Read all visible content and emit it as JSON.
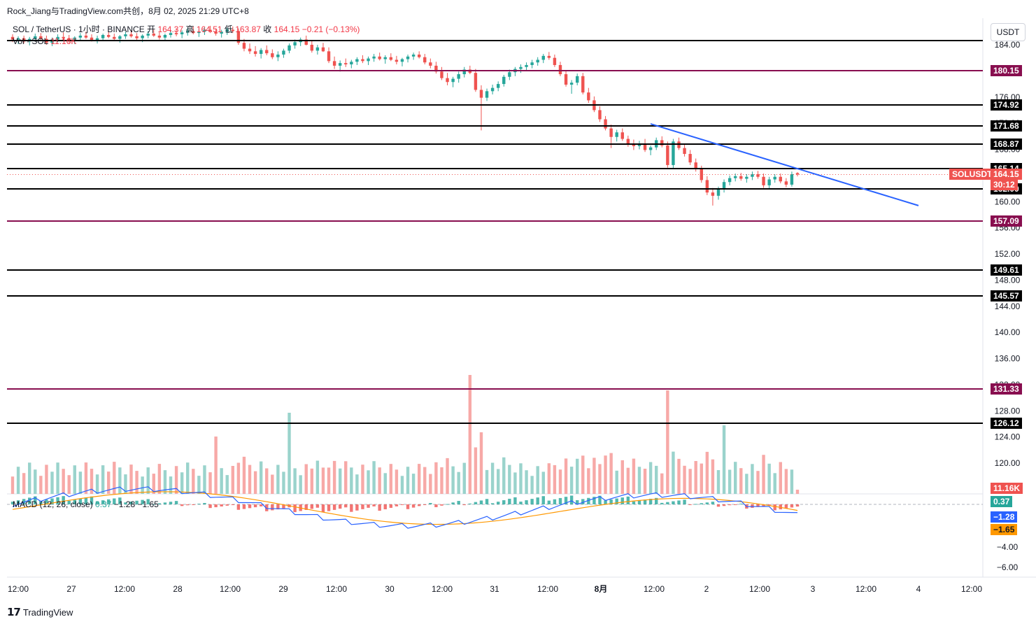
{
  "header": {
    "credit": "Rock_Jiang与TradingView.com共创，8月 02, 2025 21:29 UTC+8"
  },
  "legend": {
    "symbol": "SOL / TetherUS · 1小时 · BINANCE",
    "open_label": "开",
    "open_value": "164.37",
    "high_label": "高",
    "high_value": "164.51",
    "low_label": "低",
    "low_value": "163.87",
    "close_label": "收",
    "close_value": "164.15",
    "change": "−0.21 (−0.13%)",
    "volume_label": "Vol · SOL",
    "volume_value": "11.16K"
  },
  "macd_legend": {
    "label": "MACD (12, 26, close)",
    "hist": "0.37",
    "macd": "−1.28",
    "signal": "−1.65"
  },
  "price_scale": {
    "currency": "USDT",
    "ticks": [
      "184.00",
      "180.00",
      "176.00",
      "172.00",
      "168.00",
      "164.00",
      "160.00",
      "156.00",
      "152.00",
      "148.00",
      "144.00",
      "140.00",
      "136.00",
      "132.00",
      "128.00",
      "124.00",
      "120.00"
    ],
    "macd_ticks": [
      "−4.00",
      "−6.00"
    ]
  },
  "levels": [
    {
      "label": "184.15",
      "color": "#000000",
      "y": 58,
      "tag": false
    },
    {
      "label": "180.15",
      "color": "#880e4f",
      "y": 101,
      "tag": true
    },
    {
      "label": "174.92",
      "color": "#000000",
      "y": 150,
      "tag": true
    },
    {
      "label": "171.68",
      "color": "#000000",
      "y": 180,
      "tag": true
    },
    {
      "label": "168.87",
      "color": "#000000",
      "y": 206,
      "tag": true
    },
    {
      "label": "165.14",
      "color": "#000000",
      "y": 241,
      "tag": true
    },
    {
      "label": "162.00",
      "color": "#000000",
      "y": 270,
      "tag": true
    },
    {
      "label": "157.09",
      "color": "#880e4f",
      "y": 316,
      "tag": true
    },
    {
      "label": "149.61",
      "color": "#000000",
      "y": 386,
      "tag": true
    },
    {
      "label": "145.57",
      "color": "#000000",
      "y": 423,
      "tag": true
    },
    {
      "label": "131.33",
      "color": "#880e4f",
      "y": 556,
      "tag": true
    },
    {
      "label": "126.12",
      "color": "#000000",
      "y": 605,
      "tag": true
    }
  ],
  "current_price": {
    "symbol_tag": "SOLUSDT",
    "price": "164.15",
    "countdown": "30:12",
    "volume_tag": "11.16K",
    "hist_tag": "0.37",
    "macd_tag": "−1.28",
    "signal_tag": "−1.65"
  },
  "time_axis": [
    "12:00",
    "27",
    "12:00",
    "28",
    "12:00",
    "29",
    "12:00",
    "30",
    "12:00",
    "31",
    "12:00",
    "8月",
    "12:00",
    "2",
    "12:00",
    "3",
    "12:00",
    "4",
    "12:00"
  ],
  "colors": {
    "up": "#26a69a",
    "down": "#ef5350",
    "trendline": "#2962ff",
    "macd_line": "#2962ff",
    "signal_line": "#ff9800",
    "magenta_level": "#880e4f"
  },
  "chart_data": {
    "type": "candlestick",
    "symbol": "SOLUSDT",
    "timeframe": "1h",
    "ohlc_approx": [
      [
        185.2,
        185.6,
        184.4,
        184.8
      ],
      [
        184.8,
        185.3,
        184.1,
        185.0
      ],
      [
        185.0,
        185.4,
        184.2,
        184.5
      ],
      [
        184.5,
        185.2,
        183.9,
        184.9
      ],
      [
        184.9,
        185.7,
        184.5,
        185.3
      ],
      [
        185.3,
        185.8,
        184.6,
        184.9
      ],
      [
        184.9,
        185.4,
        184.0,
        184.3
      ],
      [
        184.3,
        185.1,
        183.8,
        184.8
      ],
      [
        184.8,
        185.6,
        184.4,
        185.2
      ],
      [
        185.2,
        185.9,
        184.7,
        185.0
      ],
      [
        185.0,
        185.5,
        184.3,
        184.6
      ],
      [
        184.6,
        185.3,
        184.1,
        185.1
      ],
      [
        185.1,
        185.8,
        184.6,
        185.4
      ],
      [
        185.4,
        186.0,
        184.9,
        185.1
      ],
      [
        185.1,
        185.6,
        184.5,
        184.7
      ],
      [
        184.7,
        185.4,
        184.2,
        185.0
      ],
      [
        185.0,
        185.7,
        184.6,
        185.5
      ],
      [
        185.5,
        186.1,
        185.0,
        185.2
      ],
      [
        185.2,
        185.7,
        184.6,
        184.9
      ],
      [
        184.9,
        185.5,
        184.3,
        185.3
      ],
      [
        185.3,
        186.0,
        184.9,
        185.6
      ],
      [
        185.6,
        186.2,
        185.1,
        185.3
      ],
      [
        185.3,
        185.8,
        184.7,
        185.0
      ],
      [
        185.0,
        185.6,
        184.4,
        185.4
      ],
      [
        185.4,
        186.1,
        185.0,
        185.7
      ],
      [
        185.7,
        186.3,
        185.2,
        185.4
      ],
      [
        185.4,
        185.9,
        184.8,
        185.1
      ],
      [
        185.1,
        185.7,
        184.6,
        185.5
      ],
      [
        185.5,
        186.2,
        185.1,
        185.8
      ],
      [
        185.8,
        186.5,
        185.3,
        185.6
      ],
      [
        185.6,
        186.2,
        185.0,
        185.9
      ],
      [
        185.9,
        186.6,
        185.4,
        186.1
      ],
      [
        186.1,
        186.8,
        185.6,
        185.8
      ],
      [
        185.8,
        186.3,
        185.2,
        186.0
      ],
      [
        186.0,
        186.7,
        185.5,
        186.3
      ],
      [
        186.3,
        186.9,
        185.8,
        186.0
      ],
      [
        186.0,
        186.5,
        185.4,
        185.7
      ],
      [
        185.7,
        186.3,
        185.1,
        186.0
      ],
      [
        186.0,
        186.6,
        185.5,
        186.3
      ],
      [
        186.3,
        186.8,
        185.8,
        186.1
      ],
      [
        186.1,
        186.5,
        184.0,
        184.3
      ],
      [
        184.3,
        184.9,
        183.0,
        183.4
      ],
      [
        183.4,
        184.2,
        182.6,
        183.0
      ],
      [
        183.0,
        183.8,
        182.2,
        182.6
      ],
      [
        182.6,
        183.5,
        181.9,
        183.2
      ],
      [
        183.2,
        183.9,
        182.4,
        182.7
      ],
      [
        182.7,
        183.3,
        181.8,
        182.1
      ],
      [
        182.1,
        183.0,
        181.5,
        182.5
      ],
      [
        182.5,
        183.4,
        182.0,
        183.1
      ],
      [
        183.1,
        184.2,
        182.7,
        183.9
      ],
      [
        183.9,
        184.8,
        183.4,
        184.4
      ],
      [
        184.4,
        185.1,
        183.8,
        184.8
      ],
      [
        184.8,
        185.4,
        183.9,
        184.0
      ],
      [
        184.0,
        184.6,
        182.8,
        183.1
      ],
      [
        183.1,
        184.0,
        182.5,
        183.6
      ],
      [
        183.6,
        184.3,
        182.9,
        183.0
      ],
      [
        183.0,
        183.6,
        181.2,
        181.5
      ],
      [
        181.5,
        182.2,
        180.3,
        180.8
      ],
      [
        180.8,
        181.6,
        179.9,
        181.2
      ],
      [
        181.2,
        181.9,
        180.6,
        181.0
      ],
      [
        181.0,
        181.7,
        180.4,
        181.4
      ],
      [
        181.4,
        182.1,
        180.9,
        181.8
      ],
      [
        181.8,
        182.4,
        181.2,
        181.5
      ],
      [
        181.5,
        182.2,
        180.9,
        181.9
      ],
      [
        181.9,
        182.6,
        181.4,
        182.2
      ],
      [
        182.2,
        182.8,
        181.6,
        181.8
      ],
      [
        181.8,
        182.4,
        181.1,
        182.1
      ],
      [
        182.1,
        182.7,
        181.5,
        181.7
      ],
      [
        181.7,
        182.3,
        181.0,
        181.4
      ],
      [
        181.4,
        182.0,
        180.7,
        181.8
      ],
      [
        181.8,
        182.5,
        181.3,
        182.2
      ],
      [
        182.2,
        182.8,
        181.7,
        182.5
      ],
      [
        182.5,
        183.0,
        181.9,
        182.1
      ],
      [
        182.1,
        182.6,
        181.0,
        181.3
      ],
      [
        181.3,
        181.9,
        180.4,
        180.8
      ],
      [
        180.8,
        181.4,
        179.6,
        179.9
      ],
      [
        179.9,
        180.6,
        178.6,
        178.9
      ],
      [
        178.9,
        179.7,
        177.8,
        178.3
      ],
      [
        178.3,
        179.1,
        177.5,
        178.8
      ],
      [
        178.8,
        179.9,
        178.2,
        179.5
      ],
      [
        179.5,
        180.6,
        179.0,
        180.2
      ],
      [
        180.2,
        180.8,
        179.5,
        179.7
      ],
      [
        179.7,
        180.3,
        176.8,
        177.1
      ],
      [
        177.1,
        177.8,
        170.9,
        175.9
      ],
      [
        175.9,
        177.3,
        175.4,
        176.9
      ],
      [
        176.9,
        177.9,
        176.4,
        177.4
      ],
      [
        177.4,
        178.4,
        176.9,
        178.0
      ],
      [
        178.0,
        179.4,
        177.6,
        179.1
      ],
      [
        179.1,
        180.2,
        178.6,
        179.8
      ],
      [
        179.8,
        180.6,
        179.2,
        180.3
      ],
      [
        180.3,
        181.0,
        179.7,
        180.6
      ],
      [
        180.6,
        181.3,
        180.1,
        180.9
      ],
      [
        180.9,
        181.7,
        180.4,
        181.3
      ],
      [
        181.3,
        182.1,
        180.8,
        181.7
      ],
      [
        181.7,
        182.6,
        181.2,
        182.3
      ],
      [
        182.3,
        182.9,
        181.7,
        182.0
      ],
      [
        182.0,
        182.5,
        180.6,
        180.9
      ],
      [
        180.9,
        181.4,
        179.2,
        179.5
      ],
      [
        179.5,
        180.0,
        177.6,
        177.9
      ],
      [
        177.9,
        178.6,
        176.5,
        178.2
      ],
      [
        178.2,
        179.6,
        177.8,
        179.2
      ],
      [
        179.2,
        179.7,
        176.4,
        176.7
      ],
      [
        176.7,
        177.4,
        175.1,
        175.5
      ],
      [
        175.5,
        176.1,
        173.7,
        174.0
      ],
      [
        174.0,
        174.6,
        172.2,
        172.6
      ],
      [
        172.6,
        173.1,
        170.9,
        171.2
      ],
      [
        171.2,
        171.8,
        168.2,
        169.9
      ],
      [
        169.9,
        171.0,
        169.2,
        170.6
      ],
      [
        170.6,
        171.2,
        169.3,
        169.6
      ],
      [
        169.6,
        170.1,
        168.4,
        168.9
      ],
      [
        168.9,
        169.5,
        167.9,
        168.5
      ],
      [
        168.5,
        169.3,
        168.0,
        168.9
      ],
      [
        168.9,
        169.6,
        167.6,
        167.9
      ],
      [
        167.9,
        168.6,
        167.1,
        168.3
      ],
      [
        168.3,
        169.8,
        167.9,
        169.4
      ],
      [
        169.4,
        170.0,
        168.3,
        168.6
      ],
      [
        168.6,
        169.2,
        165.2,
        165.6
      ],
      [
        165.6,
        169.6,
        165.0,
        169.2
      ],
      [
        169.2,
        169.8,
        167.9,
        168.2
      ],
      [
        168.2,
        168.7,
        166.9,
        167.3
      ],
      [
        167.3,
        167.9,
        165.6,
        166.0
      ],
      [
        166.0,
        166.6,
        164.6,
        165.0
      ],
      [
        165.0,
        165.5,
        162.9,
        163.3
      ],
      [
        163.3,
        163.9,
        161.0,
        161.4
      ],
      [
        161.4,
        162.1,
        159.4,
        160.9
      ],
      [
        160.9,
        162.3,
        160.3,
        161.9
      ],
      [
        161.9,
        163.4,
        161.4,
        163.0
      ],
      [
        163.0,
        164.0,
        162.5,
        163.6
      ],
      [
        163.6,
        164.3,
        163.1,
        163.9
      ],
      [
        163.9,
        164.4,
        163.2,
        163.5
      ],
      [
        163.5,
        164.2,
        162.9,
        163.8
      ],
      [
        163.8,
        164.6,
        163.3,
        164.2
      ],
      [
        164.2,
        164.7,
        163.5,
        163.8
      ],
      [
        163.8,
        164.3,
        162.1,
        162.5
      ],
      [
        162.5,
        163.8,
        162.0,
        163.4
      ],
      [
        163.4,
        164.2,
        162.9,
        163.8
      ],
      [
        163.8,
        164.3,
        162.8,
        163.1
      ],
      [
        163.1,
        163.6,
        162.2,
        162.6
      ],
      [
        162.6,
        164.6,
        162.3,
        164.2
      ],
      [
        164.37,
        164.51,
        163.87,
        164.15
      ]
    ],
    "volume_last": "11.16K",
    "macd": {
      "macd_last": -1.28,
      "signal_last": -1.65,
      "hist_last": 0.37
    },
    "trendline": {
      "from_price": 171.9,
      "to_price": 159.4
    },
    "ylabel": "USDT"
  }
}
